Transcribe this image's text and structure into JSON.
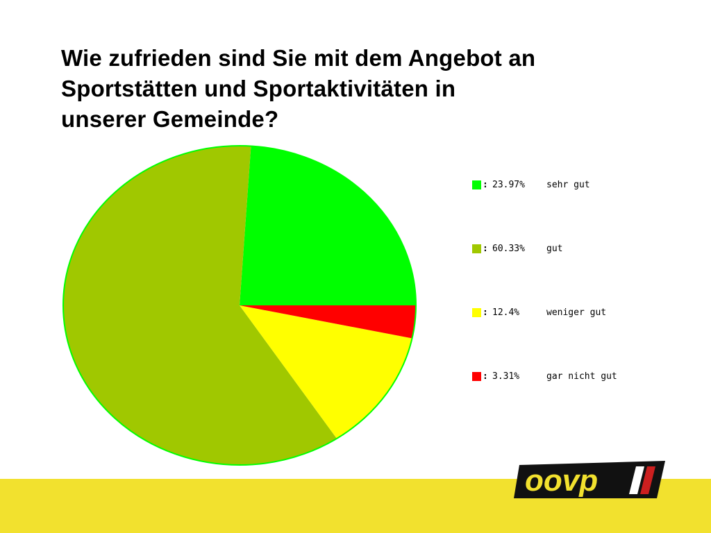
{
  "title": "Wie zufrieden sind Sie mit dem Angebot an\nSportstätten und Sportaktivitäten in\nunserer Gemeinde?",
  "chart_data": {
    "type": "pie",
    "title": "Wie zufrieden sind Sie mit dem Angebot an Sportstätten und Sportaktivitäten in unserer Gemeinde?",
    "slices": [
      {
        "label": "sehr gut",
        "value": 23.97,
        "percent_label": "23.97%",
        "color": "#00ff00"
      },
      {
        "label": "gut",
        "value": 60.33,
        "percent_label": "60.33%",
        "color": "#a0c800"
      },
      {
        "label": "weniger gut",
        "value": 12.4,
        "percent_label": "12.4%",
        "color": "#ffff00"
      },
      {
        "label": "gar nicht gut",
        "value": 3.31,
        "percent_label": "3.31%",
        "color": "#ff0000"
      }
    ],
    "start_angle": "3 o'clock",
    "direction": "counter-clockwise",
    "legend_position": "right"
  },
  "legend": {
    "items": [
      {
        "colon": ":",
        "percent": "23.97%",
        "label": "sehr gut",
        "color": "#00ff00"
      },
      {
        "colon": ":",
        "percent": "60.33%",
        "label": "gut",
        "color": "#a0c800"
      },
      {
        "colon": ":",
        "percent": "12.4%",
        "label": "weniger gut",
        "color": "#ffff00"
      },
      {
        "colon": ":",
        "percent": "3.31%",
        "label": "gar nicht gut",
        "color": "#ff0000"
      }
    ]
  },
  "logo": {
    "text": "oovp",
    "colors": {
      "frame": "#111111",
      "text": "#f2e12e",
      "accent": "#cc1f1f"
    }
  },
  "band_color": "#f2e12e"
}
